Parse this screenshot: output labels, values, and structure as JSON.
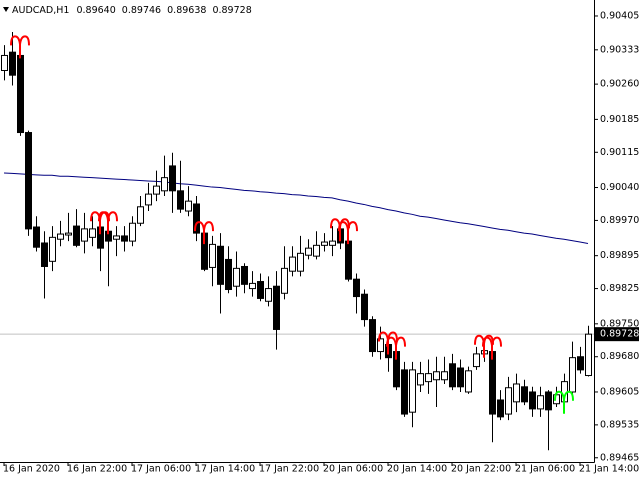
{
  "chart_data": {
    "type": "candlestick",
    "title": "AUDCAD,H1",
    "ohlc_labels": [
      "0.89640",
      "0.89746",
      "0.89638",
      "0.89728"
    ],
    "categories": [
      "16 Jan 2020",
      null,
      null,
      null,
      null,
      null,
      null,
      null,
      "16 Jan 22:00",
      null,
      null,
      null,
      null,
      null,
      null,
      null,
      "17 Jan 06:00",
      null,
      null,
      null,
      null,
      null,
      null,
      null,
      "17 Jan 14:00",
      null,
      null,
      null,
      null,
      null,
      null,
      null,
      "17 Jan 22:00",
      null,
      null,
      null,
      null,
      null,
      null,
      null,
      "20 Jan 06:00",
      null,
      null,
      null,
      null,
      null,
      null,
      null,
      "20 Jan 14:00",
      null,
      null,
      null,
      null,
      null,
      null,
      null,
      "20 Jan 22:00",
      null,
      null,
      null,
      null,
      null,
      null,
      null,
      "21 Jan 06:00",
      null,
      null,
      null,
      null,
      null,
      null,
      null,
      "21 Jan 14:00",
      null
    ],
    "open": [
      0.90289,
      0.90328,
      0.90321,
      0.90157,
      0.89956,
      0.89922,
      0.89883,
      0.8993,
      0.89939,
      0.89958,
      0.89926,
      0.89934,
      0.89956,
      0.89947,
      0.8993,
      0.89937,
      0.89926,
      0.89964,
      0.90003,
      0.90026,
      0.90033,
      0.90086,
      0.90033,
      0.8999,
      0.90005,
      0.89943,
      0.8987,
      0.89915,
      0.89887,
      0.8983,
      0.89872,
      0.89825,
      0.8984,
      0.89798,
      0.8983,
      0.89815,
      0.89862,
      0.89862,
      0.89896,
      0.89894,
      0.89917,
      0.89917,
      0.89952,
      0.89926,
      0.89845,
      0.89813,
      0.89759,
      0.89691,
      0.89706,
      0.89691,
      0.89652,
      0.89562,
      0.8962,
      0.89627,
      0.89631,
      0.89631,
      0.89665,
      0.89656,
      0.89605,
      0.89659,
      0.89686,
      0.89691,
      0.89588,
      0.89558,
      0.89584,
      0.89616,
      0.89605,
      0.89569,
      0.89605,
      0.8958,
      0.89584,
      0.89605,
      0.8968,
      0.8964
    ],
    "high": [
      0.90343,
      0.90371,
      0.90353,
      0.90161,
      0.89979,
      0.89947,
      0.89958,
      0.89969,
      0.89986,
      0.89994,
      0.89986,
      0.89979,
      0.89979,
      0.89979,
      0.89958,
      0.89958,
      0.89979,
      0.90022,
      0.9005,
      0.90076,
      0.90108,
      0.90114,
      0.90097,
      0.90043,
      0.90022,
      0.89958,
      0.89937,
      0.89943,
      0.89915,
      0.89904,
      0.89879,
      0.89862,
      0.89857,
      0.89851,
      0.89862,
      0.89915,
      0.89915,
      0.89937,
      0.8993,
      0.89947,
      0.89943,
      0.89958,
      0.89964,
      0.89958,
      0.89857,
      0.89823,
      0.89766,
      0.89744,
      0.89723,
      0.89712,
      0.89669,
      0.89669,
      0.89669,
      0.89674,
      0.8968,
      0.8968,
      0.89686,
      0.89674,
      0.89659,
      0.89701,
      0.89716,
      0.89712,
      0.89609,
      0.89637,
      0.89644,
      0.89631,
      0.89616,
      0.89616,
      0.89609,
      0.89616,
      0.89644,
      0.89712,
      0.89701,
      0.89746
    ],
    "low": [
      0.90268,
      0.90257,
      0.9015,
      0.89937,
      0.89904,
      0.89804,
      0.89862,
      0.89915,
      0.89926,
      0.89913,
      0.899,
      0.89915,
      0.89862,
      0.8983,
      0.89894,
      0.89904,
      0.89915,
      0.89958,
      0.8999,
      0.90011,
      0.90022,
      0.89986,
      0.89986,
      0.89979,
      0.89926,
      0.89862,
      0.8983,
      0.89772,
      0.89815,
      0.89808,
      0.89815,
      0.89808,
      0.89798,
      0.89787,
      0.89695,
      0.89802,
      0.89851,
      0.89851,
      0.89887,
      0.89887,
      0.89904,
      0.89894,
      0.89909,
      0.8984,
      0.89772,
      0.89744,
      0.8968,
      0.89674,
      0.89648,
      0.89609,
      0.89552,
      0.8953,
      0.89605,
      0.89601,
      0.89573,
      0.89622,
      0.89609,
      0.89605,
      0.89601,
      0.89652,
      0.89669,
      0.89498,
      0.89545,
      0.89545,
      0.89562,
      0.89577,
      0.89552,
      0.89552,
      0.89481,
      0.89573,
      0.8958,
      0.89594,
      0.89644,
      0.89638
    ],
    "close": [
      0.90321,
      0.90279,
      0.90157,
      0.89952,
      0.89913,
      0.89872,
      0.89934,
      0.89941,
      0.89943,
      0.89917,
      0.89952,
      0.89952,
      0.89911,
      0.89926,
      0.89937,
      0.89926,
      0.89964,
      0.89999,
      0.90026,
      0.90043,
      0.90061,
      0.90033,
      0.89994,
      0.90011,
      0.89943,
      0.89866,
      0.89919,
      0.89834,
      0.89823,
      0.89868,
      0.89834,
      0.89836,
      0.89804,
      0.89825,
      0.89738,
      0.89868,
      0.89892,
      0.899,
      0.89911,
      0.89917,
      0.89924,
      0.89926,
      0.89922,
      0.89845,
      0.89808,
      0.89759,
      0.89691,
      0.89718,
      0.89678,
      0.89616,
      0.89558,
      0.89652,
      0.89644,
      0.89644,
      0.89648,
      0.89648,
      0.89616,
      0.89616,
      0.8965,
      0.89686,
      0.89693,
      0.89558,
      0.89552,
      0.89614,
      0.89622,
      0.89584,
      0.89569,
      0.89597,
      0.89567,
      0.89599,
      0.89627,
      0.89678,
      0.89652,
      0.89728
    ],
    "up_color": "#ffffff",
    "down_color": "#000000",
    "ma": {
      "color": "#000080",
      "values": [
        0.90071,
        0.9007,
        0.90069,
        0.90068,
        0.90067,
        0.90066,
        0.90066,
        0.90064,
        0.90064,
        0.90063,
        0.90062,
        0.90061,
        0.9006,
        0.90059,
        0.90058,
        0.90057,
        0.90056,
        0.90055,
        0.90054,
        0.90053,
        0.90052,
        0.9005,
        0.90048,
        0.90047,
        0.90045,
        0.90043,
        0.90041,
        0.9004,
        0.90038,
        0.90036,
        0.90034,
        0.90033,
        0.90031,
        0.9003,
        0.90028,
        0.90027,
        0.90025,
        0.90024,
        0.90022,
        0.90021,
        0.90019,
        0.90018,
        0.90014,
        0.90011,
        0.90007,
        0.90004,
        0.9,
        0.89997,
        0.89993,
        0.8999,
        0.89986,
        0.89983,
        0.89979,
        0.89977,
        0.89974,
        0.89971,
        0.89968,
        0.89965,
        0.89963,
        0.8996,
        0.89957,
        0.89954,
        0.89951,
        0.89949,
        0.89946,
        0.89943,
        0.89941,
        0.89938,
        0.89935,
        0.89932,
        0.8993,
        0.89927,
        0.89924,
        0.89921
      ]
    },
    "fractals": [
      {
        "color": "#ff0000",
        "anchor": "high",
        "bars": [
          2,
          12,
          13,
          25,
          42,
          43,
          48,
          49,
          60,
          61
        ]
      },
      {
        "color": "#00ff00",
        "anchor": "low",
        "bars": [
          70
        ]
      }
    ],
    "current_price": 0.89728,
    "ylim": [
      0.89456,
      0.90439
    ],
    "yticks": [
      0.90405,
      0.90333,
      {
        "value": 0.9026,
        "label": "0.90260"
      },
      0.90185,
      0.90115,
      {
        "value": 0.9004,
        "label": "0.90040"
      },
      {
        "value": 0.8997,
        "label": "0.89970"
      },
      0.89895,
      0.89825,
      {
        "value": 0.8975,
        "label": "0.89750"
      },
      {
        "value": 0.8968,
        "label": "0.89680"
      },
      0.89605,
      0.89535,
      0.89465
    ]
  }
}
